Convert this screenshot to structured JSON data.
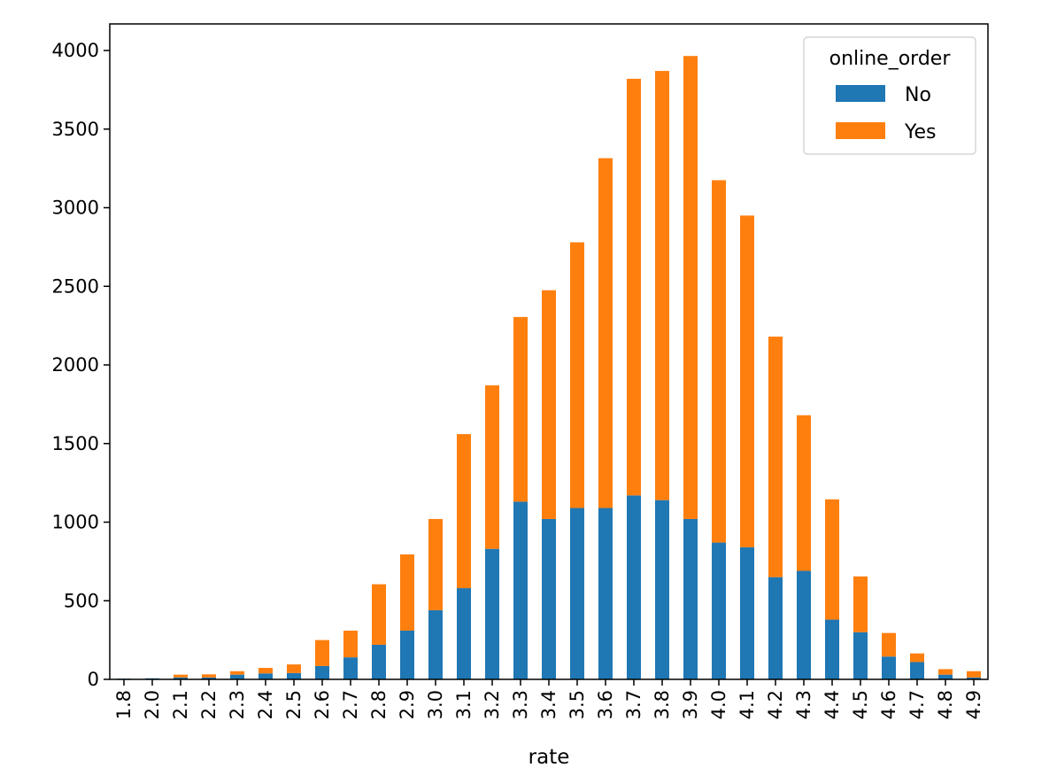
{
  "chart_data": {
    "type": "bar",
    "stacked": true,
    "categories": [
      "1.8",
      "2.0",
      "2.1",
      "2.2",
      "2.3",
      "2.4",
      "2.5",
      "2.6",
      "2.7",
      "2.8",
      "2.9",
      "3.0",
      "3.1",
      "3.2",
      "3.3",
      "3.4",
      "3.5",
      "3.6",
      "3.7",
      "3.8",
      "3.9",
      "4.0",
      "4.1",
      "4.2",
      "4.3",
      "4.4",
      "4.5",
      "4.6",
      "4.7",
      "4.8",
      "4.9"
    ],
    "series": [
      {
        "name": "No",
        "color": "#1f77b4",
        "values": [
          5,
          7,
          12,
          12,
          30,
          38,
          40,
          85,
          140,
          220,
          310,
          440,
          580,
          830,
          1130,
          1020,
          1090,
          1090,
          1170,
          1140,
          1020,
          870,
          840,
          650,
          690,
          380,
          300,
          145,
          110,
          30,
          12
        ]
      },
      {
        "name": "Yes",
        "color": "#ff7f0e",
        "values": [
          0,
          0,
          18,
          20,
          22,
          35,
          55,
          165,
          170,
          385,
          485,
          580,
          980,
          1040,
          1175,
          1455,
          1690,
          2225,
          2650,
          2730,
          2945,
          2305,
          2110,
          1530,
          990,
          765,
          355,
          150,
          55,
          35,
          40
        ]
      }
    ],
    "xlabel": "rate",
    "ylabel": "",
    "ylim": [
      0,
      4100
    ],
    "yticks": [
      0,
      500,
      1000,
      1500,
      2000,
      2500,
      3000,
      3500,
      4000
    ],
    "legend": {
      "title": "online_order",
      "position": "top-right"
    },
    "grid": false
  }
}
